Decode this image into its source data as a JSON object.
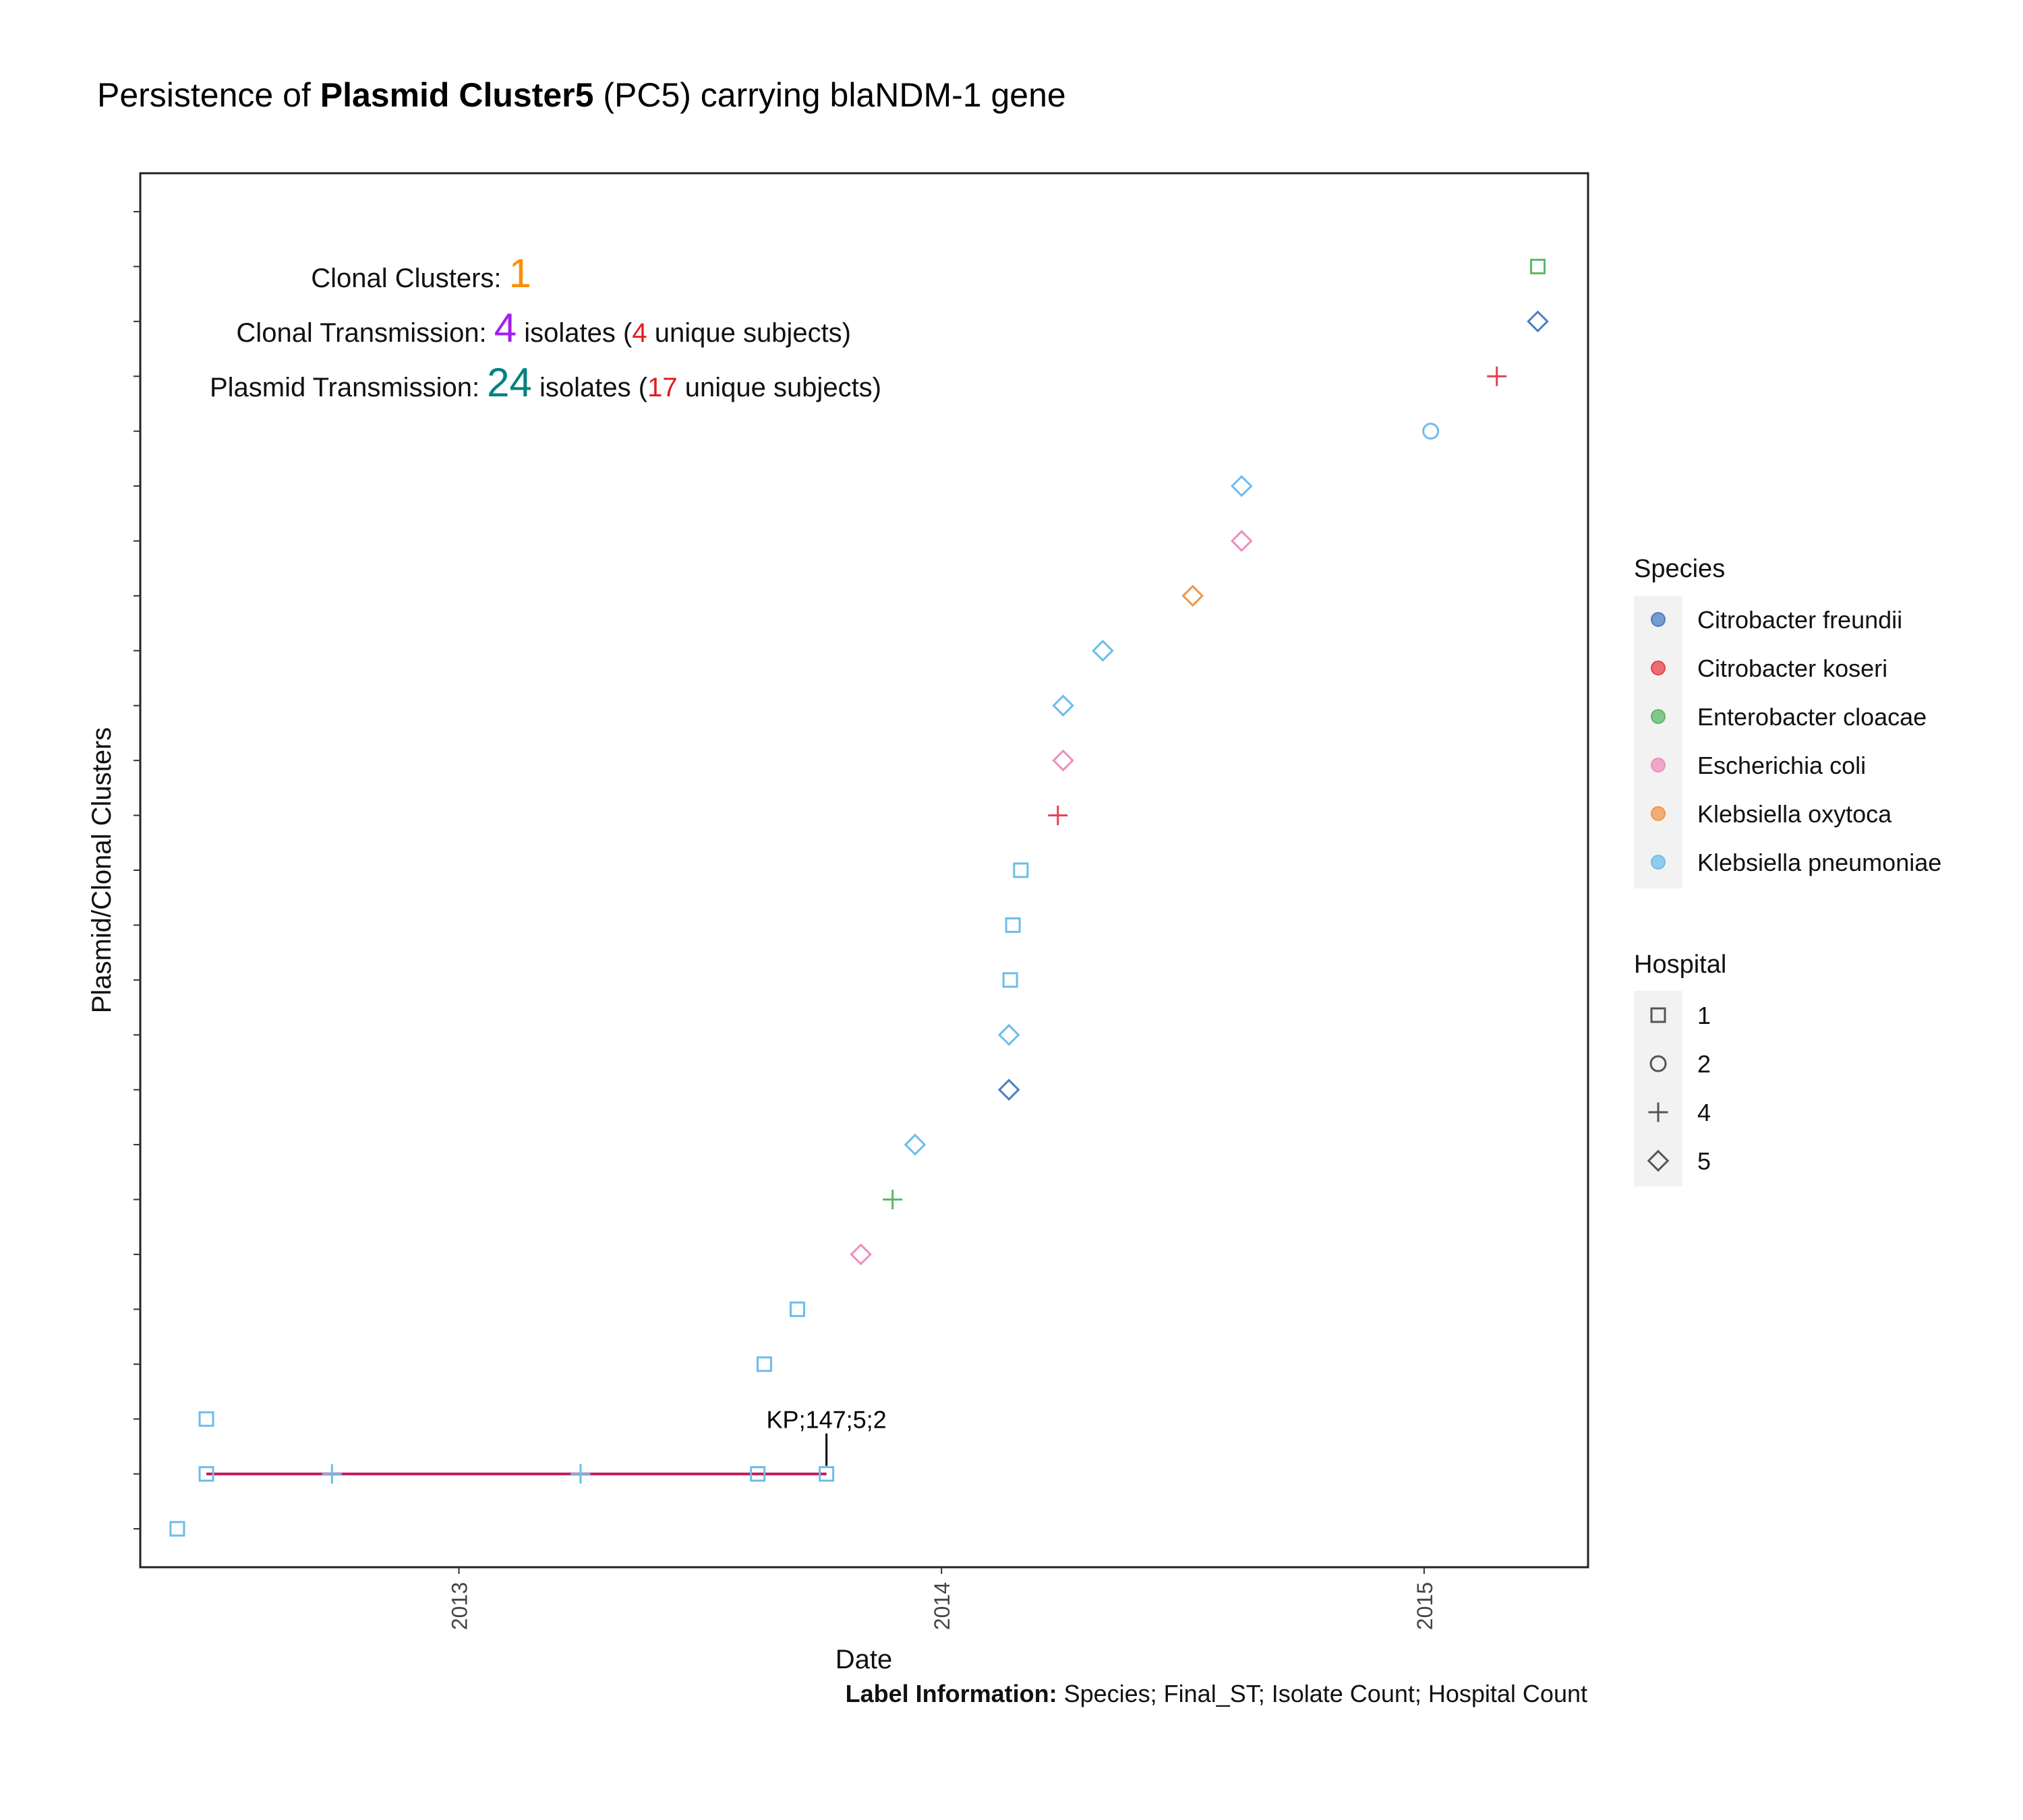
{
  "title": {
    "prefix": "Persistence of ",
    "bold": "Plasmid Cluster5",
    "suffix": " (PC5) carrying blaNDM-1 gene"
  },
  "annotations": {
    "clonal_clusters": {
      "label": "Clonal Clusters: ",
      "value": "1",
      "value_color": "#FF8C00"
    },
    "clonal_transmission": {
      "label": "Clonal Transmission: ",
      "value": "4",
      "value_color": "#A020F0",
      "mid": " isolates (",
      "subjects": "4",
      "subjects_color": "#E31A1C",
      "end": " unique subjects)"
    },
    "plasmid_transmission": {
      "label": "Plasmid Transmission: ",
      "value": "24",
      "value_color": "#008080",
      "mid": " isolates (",
      "subjects": "17",
      "subjects_color": "#E31A1C",
      "end": " unique subjects)"
    }
  },
  "caption": {
    "bold": "Label Information:",
    "text": " Species; Final_ST; Isolate Count; Hospital Count"
  },
  "chart_data": {
    "type": "scatter",
    "xlabel": "Date",
    "ylabel": "Plasmid/Clonal Clusters",
    "x_ticks": [
      "2013",
      "2014",
      "2015"
    ],
    "x_tick_values": [
      "2013-01-01",
      "2014-01-01",
      "2015-01-01"
    ],
    "xlim": [
      "2012-05-05",
      "2015-05-05"
    ],
    "ylim": [
      0.3,
      25.7
    ],
    "y_tick_count": 25,
    "grid": false,
    "legend_position": "right",
    "species_legend": {
      "title": "Species",
      "items": [
        {
          "name": "Citrobacter freundii",
          "color": "#4A7FC1"
        },
        {
          "name": "Citrobacter koseri",
          "color": "#E8404E"
        },
        {
          "name": "Enterobacter cloacae",
          "color": "#5BB866"
        },
        {
          "name": "Escherichia coli",
          "color": "#EE8FBC"
        },
        {
          "name": "Klebsiella oxytoca",
          "color": "#F0954A"
        },
        {
          "name": "Klebsiella pneumoniae",
          "color": "#6CBDEB"
        }
      ]
    },
    "hospital_legend": {
      "title": "Hospital",
      "items": [
        {
          "name": "1",
          "shape": "square"
        },
        {
          "name": "2",
          "shape": "circle"
        },
        {
          "name": "4",
          "shape": "plus"
        },
        {
          "name": "5",
          "shape": "diamond"
        }
      ]
    },
    "points": [
      {
        "x": "2012-06-02",
        "y": 1,
        "species": 5,
        "shape": "square"
      },
      {
        "x": "2012-06-24",
        "y": 2,
        "species": 5,
        "shape": "square"
      },
      {
        "x": "2012-06-24",
        "y": 3,
        "species": 5,
        "shape": "square"
      },
      {
        "x": "2012-09-27",
        "y": 2,
        "species": 5,
        "shape": "plus"
      },
      {
        "x": "2013-04-03",
        "y": 2,
        "species": 5,
        "shape": "plus"
      },
      {
        "x": "2013-08-15",
        "y": 2,
        "species": 5,
        "shape": "square"
      },
      {
        "x": "2013-10-06",
        "y": 2,
        "species": 5,
        "shape": "square"
      },
      {
        "x": "2013-08-20",
        "y": 4,
        "species": 5,
        "shape": "square"
      },
      {
        "x": "2013-09-14",
        "y": 5,
        "species": 5,
        "shape": "square"
      },
      {
        "x": "2013-11-01",
        "y": 6,
        "species": 3,
        "shape": "diamond"
      },
      {
        "x": "2013-11-25",
        "y": 7,
        "species": 2,
        "shape": "plus"
      },
      {
        "x": "2013-12-12",
        "y": 8,
        "species": 5,
        "shape": "diamond"
      },
      {
        "x": "2014-02-21",
        "y": 9,
        "species": 0,
        "shape": "diamond"
      },
      {
        "x": "2014-02-21",
        "y": 10,
        "species": 5,
        "shape": "diamond"
      },
      {
        "x": "2014-02-22",
        "y": 11,
        "species": 5,
        "shape": "square"
      },
      {
        "x": "2014-02-24",
        "y": 12,
        "species": 5,
        "shape": "square"
      },
      {
        "x": "2014-03-02",
        "y": 13,
        "species": 5,
        "shape": "square"
      },
      {
        "x": "2014-03-30",
        "y": 14,
        "species": 1,
        "shape": "plus"
      },
      {
        "x": "2014-04-03",
        "y": 15,
        "species": 3,
        "shape": "diamond"
      },
      {
        "x": "2014-04-03",
        "y": 16,
        "species": 5,
        "shape": "diamond"
      },
      {
        "x": "2014-05-03",
        "y": 17,
        "species": 5,
        "shape": "diamond"
      },
      {
        "x": "2014-07-10",
        "y": 18,
        "species": 4,
        "shape": "diamond"
      },
      {
        "x": "2014-08-16",
        "y": 19,
        "species": 3,
        "shape": "diamond"
      },
      {
        "x": "2014-08-16",
        "y": 20,
        "species": 5,
        "shape": "diamond"
      },
      {
        "x": "2015-01-06",
        "y": 21,
        "species": 5,
        "shape": "circle"
      },
      {
        "x": "2015-02-25",
        "y": 22,
        "species": 1,
        "shape": "plus"
      },
      {
        "x": "2015-03-28",
        "y": 23,
        "species": 0,
        "shape": "diamond"
      },
      {
        "x": "2015-03-28",
        "y": 24,
        "species": 2,
        "shape": "square"
      }
    ],
    "segments": [
      {
        "x1": "2012-06-24",
        "x2": "2013-10-06",
        "y": 2,
        "color": "#C2185B"
      }
    ],
    "labels": [
      {
        "text": "KP;147;5;2",
        "x": "2013-10-06",
        "y": 2
      }
    ]
  }
}
